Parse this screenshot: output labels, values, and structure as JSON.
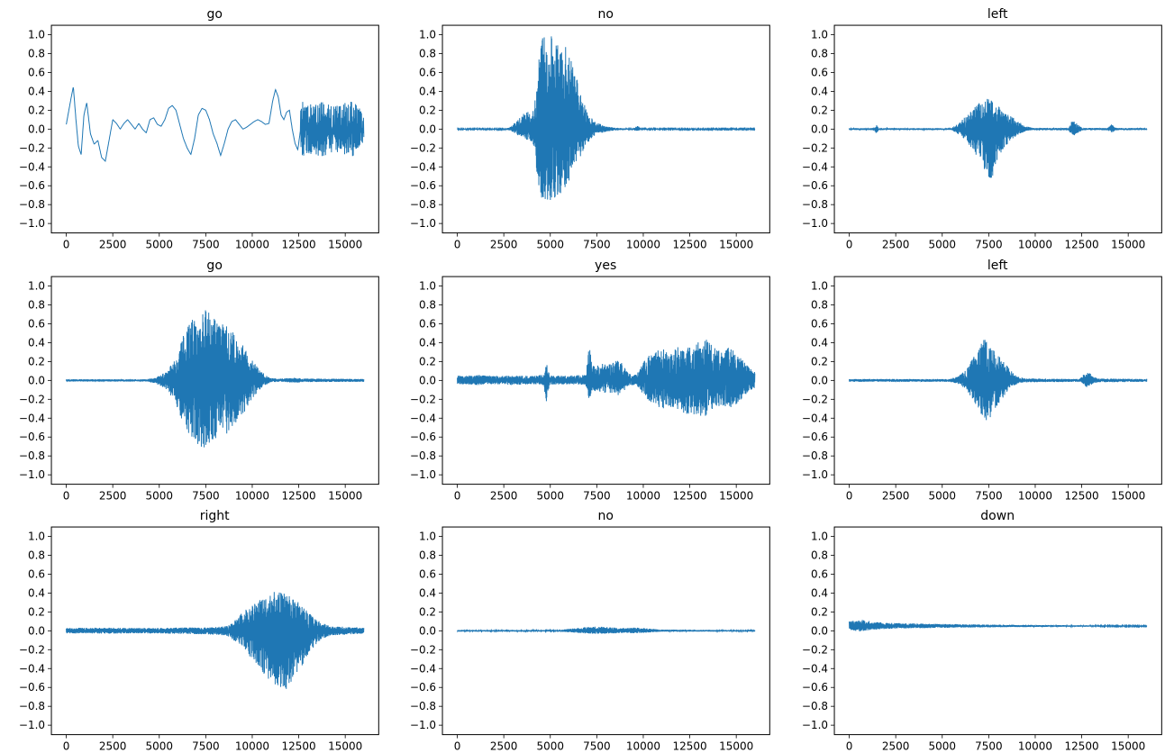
{
  "figure": {
    "background": "#ffffff",
    "line_color": "#1f77b4",
    "rows": 3,
    "cols": 3
  },
  "axes": {
    "xlim": [
      -800,
      16800
    ],
    "ylim": [
      -1.1,
      1.1
    ],
    "xticks": [
      0,
      2500,
      5000,
      7500,
      10000,
      12500,
      15000
    ],
    "xtick_labels": [
      "0",
      "2500",
      "5000",
      "7500",
      "10000",
      "12500",
      "15000"
    ],
    "yticks": [
      1.0,
      0.8,
      0.6,
      0.4,
      0.2,
      0.0,
      -0.2,
      -0.4,
      -0.6,
      -0.8,
      -1.0
    ],
    "ytick_labels": [
      "1.0",
      "0.8",
      "0.6",
      "0.4",
      "0.2",
      "0.0",
      "−0.2",
      "−0.4",
      "−0.6",
      "−0.8",
      "−1.0"
    ]
  },
  "chart_data": [
    {
      "type": "line",
      "subtype": "smooth",
      "title": "go",
      "seed": 11,
      "xlabel": "",
      "ylabel": "",
      "points": [
        [
          0,
          0.05
        ],
        [
          250,
          0.32
        ],
        [
          380,
          0.45
        ],
        [
          520,
          0.1
        ],
        [
          650,
          -0.18
        ],
        [
          800,
          -0.27
        ],
        [
          950,
          0.15
        ],
        [
          1100,
          0.28
        ],
        [
          1300,
          -0.05
        ],
        [
          1500,
          -0.16
        ],
        [
          1700,
          -0.12
        ],
        [
          1900,
          -0.3
        ],
        [
          2100,
          -0.34
        ],
        [
          2300,
          -0.12
        ],
        [
          2500,
          0.1
        ],
        [
          2700,
          0.06
        ],
        [
          2900,
          0.0
        ],
        [
          3100,
          0.06
        ],
        [
          3300,
          0.1
        ],
        [
          3500,
          0.05
        ],
        [
          3700,
          0.0
        ],
        [
          3900,
          0.06
        ],
        [
          4100,
          0.0
        ],
        [
          4300,
          -0.04
        ],
        [
          4500,
          0.1
        ],
        [
          4700,
          0.12
        ],
        [
          4900,
          0.05
        ],
        [
          5100,
          0.03
        ],
        [
          5300,
          0.1
        ],
        [
          5500,
          0.22
        ],
        [
          5700,
          0.25
        ],
        [
          5900,
          0.2
        ],
        [
          6100,
          0.05
        ],
        [
          6300,
          -0.1
        ],
        [
          6500,
          -0.2
        ],
        [
          6700,
          -0.27
        ],
        [
          6900,
          -0.1
        ],
        [
          7100,
          0.15
        ],
        [
          7300,
          0.22
        ],
        [
          7500,
          0.2
        ],
        [
          7700,
          0.1
        ],
        [
          7900,
          -0.05
        ],
        [
          8100,
          -0.15
        ],
        [
          8300,
          -0.28
        ],
        [
          8500,
          -0.15
        ],
        [
          8700,
          0.0
        ],
        [
          8900,
          0.08
        ],
        [
          9100,
          0.1
        ],
        [
          9300,
          0.05
        ],
        [
          9500,
          0.0
        ],
        [
          9700,
          0.02
        ],
        [
          9900,
          0.05
        ],
        [
          10100,
          0.08
        ],
        [
          10300,
          0.1
        ],
        [
          10500,
          0.08
        ],
        [
          10700,
          0.05
        ],
        [
          10900,
          0.06
        ],
        [
          11100,
          0.3
        ],
        [
          11250,
          0.42
        ],
        [
          11400,
          0.34
        ],
        [
          11550,
          0.15
        ],
        [
          11700,
          0.1
        ],
        [
          11850,
          0.18
        ],
        [
          12000,
          0.2
        ],
        [
          12150,
          0.0
        ],
        [
          12300,
          -0.15
        ],
        [
          12450,
          -0.22
        ],
        [
          12600,
          0.0
        ]
      ],
      "tail_envelope": [
        [
          12600,
          0.3
        ],
        [
          13200,
          0.26
        ],
        [
          13800,
          0.3
        ],
        [
          14400,
          0.24
        ],
        [
          15000,
          0.28
        ],
        [
          15600,
          0.3
        ],
        [
          16000,
          0.12
        ]
      ]
    },
    {
      "type": "line",
      "subtype": "waveform",
      "title": "no",
      "seed": 22,
      "offset": 0,
      "envelope": [
        [
          0,
          0.006,
          0.006
        ],
        [
          2600,
          0.006,
          0.006
        ],
        [
          2900,
          0.03,
          0.02
        ],
        [
          3200,
          0.09,
          0.06
        ],
        [
          3600,
          0.17,
          0.1
        ],
        [
          4000,
          0.2,
          0.14
        ],
        [
          4200,
          0.35,
          0.3
        ],
        [
          4400,
          0.95,
          0.72
        ],
        [
          4700,
          1.0,
          0.78
        ],
        [
          5200,
          1.0,
          0.74
        ],
        [
          5600,
          0.97,
          0.68
        ],
        [
          6000,
          0.8,
          0.55
        ],
        [
          6300,
          0.62,
          0.4
        ],
        [
          6600,
          0.42,
          0.3
        ],
        [
          6900,
          0.22,
          0.18
        ],
        [
          7200,
          0.12,
          0.1
        ],
        [
          7500,
          0.07,
          0.05
        ],
        [
          8000,
          0.03,
          0.03
        ],
        [
          8600,
          0.012,
          0.012
        ],
        [
          9400,
          0.006,
          0.006
        ],
        [
          9700,
          0.035,
          0.025
        ],
        [
          9900,
          0.006,
          0.006
        ],
        [
          16000,
          0.005,
          0.005
        ]
      ]
    },
    {
      "type": "line",
      "subtype": "waveform",
      "title": "left",
      "seed": 33,
      "offset": 0,
      "envelope": [
        [
          0,
          0.01,
          0.01
        ],
        [
          1350,
          0.01,
          0.01
        ],
        [
          1450,
          0.06,
          0.05
        ],
        [
          1600,
          0.01,
          0.01
        ],
        [
          5500,
          0.01,
          0.01
        ],
        [
          5900,
          0.07,
          0.06
        ],
        [
          6300,
          0.14,
          0.12
        ],
        [
          6700,
          0.22,
          0.25
        ],
        [
          7100,
          0.3,
          0.36
        ],
        [
          7400,
          0.33,
          0.48
        ],
        [
          7650,
          0.3,
          0.55
        ],
        [
          7900,
          0.26,
          0.36
        ],
        [
          8300,
          0.2,
          0.2
        ],
        [
          8700,
          0.14,
          0.12
        ],
        [
          9100,
          0.08,
          0.06
        ],
        [
          9500,
          0.03,
          0.02
        ],
        [
          9900,
          0.012,
          0.012
        ],
        [
          11800,
          0.012,
          0.012
        ],
        [
          12000,
          0.1,
          0.08
        ],
        [
          12300,
          0.05,
          0.04
        ],
        [
          12550,
          0.012,
          0.012
        ],
        [
          13900,
          0.012,
          0.012
        ],
        [
          14100,
          0.05,
          0.04
        ],
        [
          14350,
          0.012,
          0.012
        ],
        [
          16000,
          0.01,
          0.01
        ]
      ]
    },
    {
      "type": "line",
      "subtype": "waveform",
      "title": "go",
      "seed": 44,
      "offset": 0,
      "envelope": [
        [
          0,
          0.012,
          0.012
        ],
        [
          4300,
          0.012,
          0.012
        ],
        [
          4800,
          0.03,
          0.03
        ],
        [
          5300,
          0.09,
          0.09
        ],
        [
          5800,
          0.2,
          0.2
        ],
        [
          6200,
          0.45,
          0.42
        ],
        [
          6600,
          0.6,
          0.58
        ],
        [
          7000,
          0.7,
          0.68
        ],
        [
          7300,
          0.77,
          0.73
        ],
        [
          7600,
          0.73,
          0.7
        ],
        [
          8000,
          0.66,
          0.64
        ],
        [
          8400,
          0.6,
          0.6
        ],
        [
          8800,
          0.55,
          0.54
        ],
        [
          9200,
          0.46,
          0.45
        ],
        [
          9600,
          0.35,
          0.33
        ],
        [
          10000,
          0.22,
          0.2
        ],
        [
          10400,
          0.12,
          0.1
        ],
        [
          10700,
          0.06,
          0.05
        ],
        [
          11000,
          0.025,
          0.02
        ],
        [
          11500,
          0.018,
          0.015
        ],
        [
          12300,
          0.03,
          0.025
        ],
        [
          12700,
          0.02,
          0.018
        ],
        [
          16000,
          0.015,
          0.015
        ]
      ]
    },
    {
      "type": "line",
      "subtype": "waveform",
      "title": "yes",
      "seed": 55,
      "offset": 0,
      "envelope": [
        [
          0,
          0.05,
          0.04
        ],
        [
          1000,
          0.06,
          0.05
        ],
        [
          2000,
          0.05,
          0.04
        ],
        [
          3000,
          0.05,
          0.05
        ],
        [
          4000,
          0.05,
          0.04
        ],
        [
          4650,
          0.06,
          0.05
        ],
        [
          4800,
          0.2,
          0.26
        ],
        [
          4950,
          0.06,
          0.05
        ],
        [
          6000,
          0.05,
          0.04
        ],
        [
          6900,
          0.06,
          0.05
        ],
        [
          7100,
          0.38,
          0.22
        ],
        [
          7250,
          0.15,
          0.1
        ],
        [
          7500,
          0.16,
          0.12
        ],
        [
          7800,
          0.18,
          0.14
        ],
        [
          8100,
          0.16,
          0.12
        ],
        [
          8400,
          0.2,
          0.15
        ],
        [
          8700,
          0.22,
          0.16
        ],
        [
          9000,
          0.14,
          0.1
        ],
        [
          9300,
          0.07,
          0.05
        ],
        [
          9600,
          0.06,
          0.05
        ],
        [
          9900,
          0.15,
          0.12
        ],
        [
          10200,
          0.26,
          0.2
        ],
        [
          10600,
          0.3,
          0.26
        ],
        [
          11000,
          0.36,
          0.3
        ],
        [
          11400,
          0.3,
          0.28
        ],
        [
          11800,
          0.36,
          0.3
        ],
        [
          12200,
          0.32,
          0.35
        ],
        [
          12600,
          0.38,
          0.36
        ],
        [
          13000,
          0.42,
          0.38
        ],
        [
          13400,
          0.44,
          0.4
        ],
        [
          13800,
          0.36,
          0.3
        ],
        [
          14200,
          0.3,
          0.28
        ],
        [
          14600,
          0.35,
          0.3
        ],
        [
          15000,
          0.3,
          0.26
        ],
        [
          15400,
          0.2,
          0.17
        ],
        [
          15800,
          0.12,
          0.1
        ],
        [
          16000,
          0.1,
          0.08
        ]
      ]
    },
    {
      "type": "line",
      "subtype": "waveform",
      "title": "left",
      "seed": 66,
      "offset": 0,
      "envelope": [
        [
          0,
          0.015,
          0.015
        ],
        [
          5400,
          0.015,
          0.015
        ],
        [
          5900,
          0.05,
          0.04
        ],
        [
          6300,
          0.12,
          0.1
        ],
        [
          6700,
          0.26,
          0.22
        ],
        [
          7000,
          0.36,
          0.32
        ],
        [
          7250,
          0.46,
          0.42
        ],
        [
          7450,
          0.42,
          0.45
        ],
        [
          7650,
          0.36,
          0.36
        ],
        [
          7900,
          0.3,
          0.28
        ],
        [
          8200,
          0.22,
          0.2
        ],
        [
          8500,
          0.15,
          0.12
        ],
        [
          8800,
          0.08,
          0.06
        ],
        [
          9100,
          0.04,
          0.03
        ],
        [
          9500,
          0.02,
          0.02
        ],
        [
          12400,
          0.015,
          0.015
        ],
        [
          12650,
          0.08,
          0.06
        ],
        [
          12850,
          0.1,
          0.08
        ],
        [
          13100,
          0.04,
          0.03
        ],
        [
          13400,
          0.02,
          0.02
        ],
        [
          16000,
          0.015,
          0.015
        ]
      ]
    },
    {
      "type": "line",
      "subtype": "waveform",
      "title": "right",
      "seed": 77,
      "offset": 0,
      "envelope": [
        [
          0,
          0.03,
          0.028
        ],
        [
          2000,
          0.034,
          0.03
        ],
        [
          4000,
          0.03,
          0.028
        ],
        [
          6000,
          0.034,
          0.032
        ],
        [
          8000,
          0.04,
          0.04
        ],
        [
          8600,
          0.05,
          0.05
        ],
        [
          9000,
          0.1,
          0.1
        ],
        [
          9400,
          0.18,
          0.16
        ],
        [
          9800,
          0.25,
          0.26
        ],
        [
          10200,
          0.3,
          0.36
        ],
        [
          10600,
          0.35,
          0.45
        ],
        [
          11000,
          0.4,
          0.55
        ],
        [
          11400,
          0.45,
          0.6
        ],
        [
          11800,
          0.4,
          0.65
        ],
        [
          12200,
          0.36,
          0.5
        ],
        [
          12600,
          0.3,
          0.4
        ],
        [
          13000,
          0.2,
          0.26
        ],
        [
          13400,
          0.13,
          0.15
        ],
        [
          13800,
          0.08,
          0.08
        ],
        [
          14200,
          0.05,
          0.05
        ],
        [
          15000,
          0.042,
          0.04
        ],
        [
          16000,
          0.032,
          0.03
        ]
      ]
    },
    {
      "type": "line",
      "subtype": "waveform",
      "title": "no",
      "seed": 88,
      "offset": 0,
      "envelope": [
        [
          0,
          0.008,
          0.008
        ],
        [
          2500,
          0.008,
          0.008
        ],
        [
          2650,
          0.015,
          0.012
        ],
        [
          2800,
          0.008,
          0.008
        ],
        [
          5500,
          0.008,
          0.008
        ],
        [
          6000,
          0.02,
          0.015
        ],
        [
          6500,
          0.03,
          0.022
        ],
        [
          7000,
          0.042,
          0.03
        ],
        [
          7500,
          0.045,
          0.032
        ],
        [
          8000,
          0.04,
          0.03
        ],
        [
          8500,
          0.035,
          0.026
        ],
        [
          9000,
          0.03,
          0.022
        ],
        [
          9500,
          0.035,
          0.026
        ],
        [
          10000,
          0.03,
          0.022
        ],
        [
          10500,
          0.02,
          0.016
        ],
        [
          11000,
          0.012,
          0.01
        ],
        [
          16000,
          0.007,
          0.007
        ]
      ]
    },
    {
      "type": "line",
      "subtype": "waveform",
      "title": "down",
      "seed": 99,
      "offset": 0.05,
      "envelope": [
        [
          0,
          0.05,
          0.04
        ],
        [
          300,
          0.06,
          0.05
        ],
        [
          600,
          0.07,
          0.06
        ],
        [
          900,
          0.06,
          0.05
        ],
        [
          1200,
          0.05,
          0.04
        ],
        [
          1600,
          0.04,
          0.035
        ],
        [
          2000,
          0.035,
          0.03
        ],
        [
          3000,
          0.03,
          0.025
        ],
        [
          4000,
          0.026,
          0.022
        ],
        [
          5000,
          0.022,
          0.018
        ],
        [
          6000,
          0.02,
          0.016
        ],
        [
          7000,
          0.017,
          0.014
        ],
        [
          8000,
          0.015,
          0.012
        ],
        [
          10000,
          0.012,
          0.009
        ],
        [
          12000,
          0.009,
          0.007
        ],
        [
          14000,
          0.007,
          0.005
        ],
        [
          16000,
          0.005,
          0.004
        ]
      ]
    }
  ]
}
